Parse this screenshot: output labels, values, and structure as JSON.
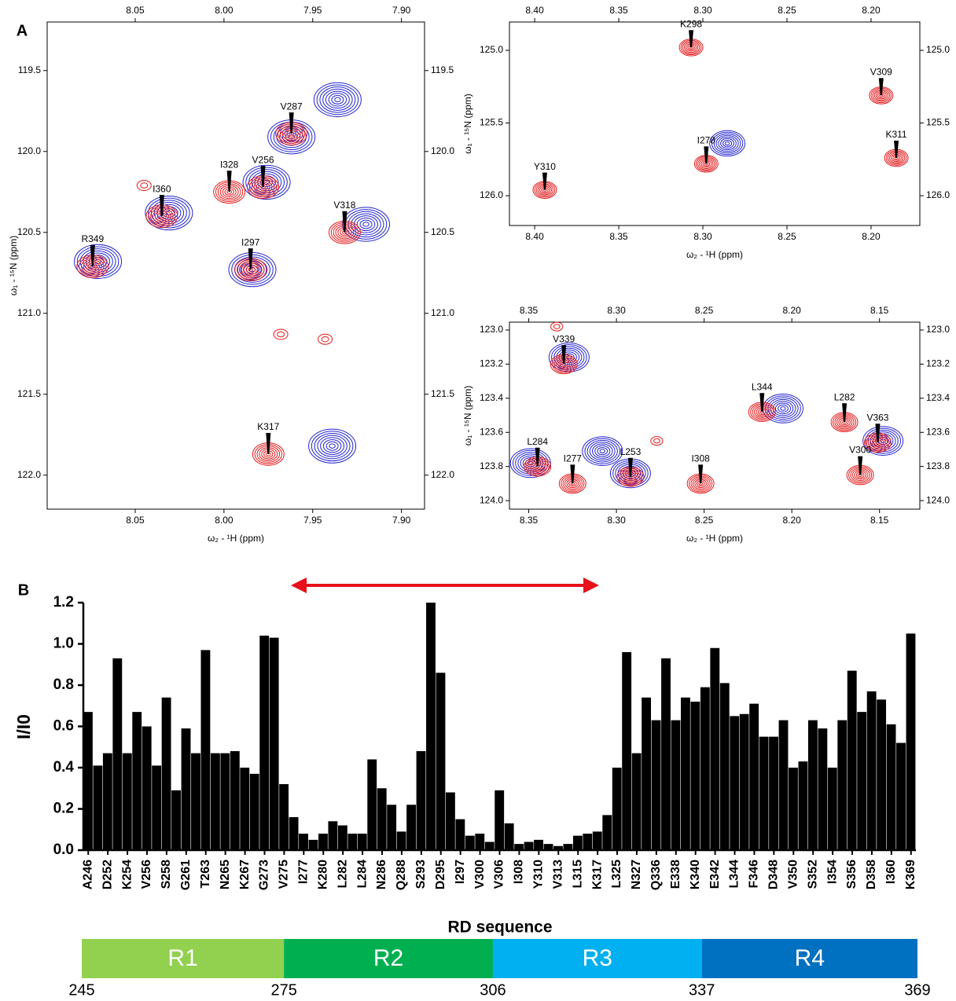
{
  "chart_data": [
    {
      "type": "contour",
      "panel": "A",
      "xlabel": "ω₂ - ¹H (ppm)",
      "ylabel": "ω₁ - ¹⁵N (ppm)",
      "xlim": [
        8.0996,
        7.887
      ],
      "ylim": [
        119.2,
        122.21
      ],
      "xticks": [
        8.05,
        {
          "value": 8.0,
          "label": "8.00"
        },
        7.95,
        {
          "value": 7.9,
          "label": "7.90"
        }
      ],
      "yticks": [
        119.5,
        {
          "value": 120,
          "label": "120.0"
        },
        120.5,
        {
          "value": 121,
          "label": "121.0"
        },
        121.5,
        {
          "value": 122,
          "label": "122.0"
        }
      ],
      "red_color": "#e31a1c",
      "blue_color": "#2424d0",
      "peaks": [
        {
          "label": "V287",
          "x": 7.962,
          "y": 119.89
        },
        {
          "label": "I328",
          "x": 7.997,
          "y": 120.25
        },
        {
          "label": "V256",
          "x": 7.978,
          "y": 120.22
        },
        {
          "label": "I360",
          "x": 8.035,
          "y": 120.4
        },
        {
          "label": "R349",
          "x": 8.074,
          "y": 120.71
        },
        {
          "label": "I297",
          "x": 7.985,
          "y": 120.73
        },
        {
          "label": "V318",
          "x": 7.932,
          "y": 120.5
        },
        {
          "label": "K317",
          "x": 7.975,
          "y": 121.87
        }
      ],
      "blue_peaks": [
        {
          "x": 7.962,
          "y": 119.91
        },
        {
          "x": 7.976,
          "y": 120.19
        },
        {
          "x": 8.031,
          "y": 120.38
        },
        {
          "x": 8.071,
          "y": 120.68
        },
        {
          "x": 7.984,
          "y": 120.73
        },
        {
          "x": 7.92,
          "y": 120.45
        },
        {
          "x": 7.936,
          "y": 119.68
        },
        {
          "x": 7.939,
          "y": 121.82
        }
      ],
      "small_peaks": [
        {
          "x": 8.045,
          "y": 120.21
        },
        {
          "x": 7.943,
          "y": 121.16
        },
        {
          "x": 7.968,
          "y": 121.13
        }
      ]
    },
    {
      "type": "contour",
      "xlabel": "ω₂ - ¹H (ppm)",
      "ylabel": "ω₁ - ¹⁵N (ppm)",
      "xlim": [
        8.415,
        8.171
      ],
      "ylim": [
        124.805,
        126.205
      ],
      "xticks": [
        {
          "value": 8.4,
          "label": "8.40"
        },
        8.35,
        {
          "value": 8.3,
          "label": "8.30"
        },
        8.25,
        {
          "value": 8.2,
          "label": "8.20"
        }
      ],
      "yticks": [
        {
          "value": 125,
          "label": "125.0"
        },
        125.5,
        {
          "value": 126,
          "label": "126.0"
        }
      ],
      "red_color": "#e31a1c",
      "blue_color": "#2424d0",
      "peaks": [
        {
          "label": "K298",
          "x": 8.307,
          "y": 124.98
        },
        {
          "label": "V309",
          "x": 8.194,
          "y": 125.31
        },
        {
          "label": "I278",
          "x": 8.298,
          "y": 125.78
        },
        {
          "label": "K311",
          "x": 8.185,
          "y": 125.74
        },
        {
          "label": "Y310",
          "x": 8.394,
          "y": 125.96
        }
      ],
      "blue_peaks": [
        {
          "x": 8.2855,
          "y": 125.64
        }
      ],
      "small_peaks": []
    },
    {
      "type": "contour",
      "xlabel": "ω₂ - ¹H (ppm)",
      "ylabel": "ω₁ - ¹⁵N (ppm)",
      "xlim": [
        8.361,
        8.127
      ],
      "ylim": [
        122.954,
        124.05
      ],
      "xticks": [
        8.35,
        {
          "value": 8.3,
          "label": "8.30"
        },
        8.25,
        {
          "value": 8.2,
          "label": "8.20"
        },
        8.15
      ],
      "yticks": [
        {
          "value": 123,
          "label": "123.0"
        },
        123.2,
        123.4,
        123.6,
        123.8,
        {
          "value": 124,
          "label": "124.0"
        }
      ],
      "red_color": "#e31a1c",
      "blue_color": "#2424d0",
      "peaks": [
        {
          "label": "V339",
          "x": 8.33,
          "y": 123.2
        },
        {
          "label": "L344",
          "x": 8.217,
          "y": 123.48
        },
        {
          "label": "L282",
          "x": 8.17,
          "y": 123.54
        },
        {
          "label": "V363",
          "x": 8.151,
          "y": 123.66
        },
        {
          "label": "L284",
          "x": 8.345,
          "y": 123.8
        },
        {
          "label": "I277",
          "x": 8.325,
          "y": 123.9
        },
        {
          "label": "L253",
          "x": 8.292,
          "y": 123.86
        },
        {
          "label": "I308",
          "x": 8.252,
          "y": 123.9
        },
        {
          "label": "V300",
          "x": 8.161,
          "y": 123.85
        }
      ],
      "blue_peaks": [
        {
          "x": 8.327,
          "y": 123.16
        },
        {
          "x": 8.205,
          "y": 123.46
        },
        {
          "x": 8.148,
          "y": 123.65
        },
        {
          "x": 8.349,
          "y": 123.78
        },
        {
          "x": 8.292,
          "y": 123.84
        },
        {
          "x": 8.308,
          "y": 123.71
        }
      ],
      "small_peaks": [
        {
          "x": 8.277,
          "y": 123.65
        },
        {
          "x": 8.334,
          "y": 122.98
        }
      ]
    },
    {
      "type": "bar",
      "panel": "B",
      "xlabel": "RD sequence",
      "ylabel": "I/I0",
      "color": "#000000",
      "ylim": [
        0,
        1.2
      ],
      "yticks": [
        {
          "value": 0,
          "label": "0.0"
        },
        0.2,
        0.4,
        0.6,
        0.8,
        {
          "value": 1,
          "label": "1.0"
        },
        1.2
      ],
      "categories": [
        "A246",
        null,
        "D252",
        null,
        "K254",
        null,
        "V256",
        null,
        "S258",
        null,
        "G261",
        null,
        "T263",
        null,
        "N265",
        null,
        "K267",
        null,
        "G273",
        null,
        "V275",
        null,
        "I277",
        null,
        "K280",
        null,
        "L282",
        null,
        "L284",
        null,
        "N286",
        null,
        "Q288",
        null,
        "S293",
        null,
        "D295",
        null,
        "I297",
        null,
        "V300",
        null,
        "V306",
        null,
        "I308",
        null,
        "Y310",
        null,
        "V313",
        null,
        "L315",
        null,
        "K317",
        null,
        "L325",
        null,
        "N327",
        null,
        "Q336",
        null,
        "E338",
        null,
        "K340",
        null,
        "E342",
        null,
        "L344",
        null,
        "F346",
        null,
        "D348",
        null,
        "V350",
        null,
        "S352",
        null,
        "I354",
        null,
        "S356",
        null,
        "D358",
        null,
        "I360",
        null,
        "K369"
      ],
      "values": [
        0.67,
        0.41,
        0.47,
        0.93,
        0.47,
        0.67,
        0.6,
        0.41,
        0.74,
        0.29,
        0.59,
        0.47,
        0.97,
        0.47,
        0.47,
        0.48,
        0.4,
        0.37,
        1.04,
        1.03,
        0.32,
        0.16,
        0.08,
        0.05,
        0.08,
        0.14,
        0.12,
        0.08,
        0.08,
        0.44,
        0.3,
        0.22,
        0.09,
        0.22,
        0.48,
        1.2,
        0.86,
        0.28,
        0.15,
        0.07,
        0.08,
        0.04,
        0.29,
        0.13,
        0.03,
        0.04,
        0.05,
        0.03,
        0.02,
        0.03,
        0.07,
        0.08,
        0.09,
        0.17,
        0.4,
        0.96,
        0.47,
        0.74,
        0.63,
        0.93,
        0.63,
        0.74,
        0.72,
        0.79,
        0.98,
        0.81,
        0.65,
        0.66,
        0.71,
        0.55,
        0.55,
        0.63,
        0.4,
        0.43,
        0.63,
        0.59,
        0.4,
        0.63,
        0.87,
        0.67,
        0.77,
        0.73,
        0.61,
        0.52,
        1.05
      ],
      "region_ticks": [
        245,
        275,
        306,
        337,
        369
      ],
      "regions": [
        {
          "label": "R1",
          "color": "#92d050"
        },
        {
          "label": "R2",
          "color": "#00b050"
        },
        {
          "label": "R3",
          "color": "#00b0f0"
        },
        {
          "label": "R4",
          "color": "#0070c0"
        }
      ]
    }
  ]
}
